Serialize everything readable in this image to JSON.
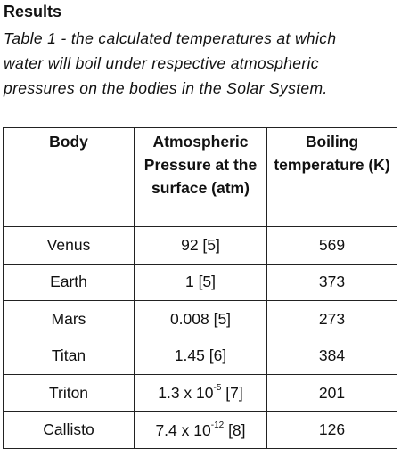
{
  "heading": "Results",
  "caption_lines": [
    "Table 1 - the calculated temperatures at which",
    "water will boil under respective atmospheric",
    "pressures on the bodies in the Solar System."
  ],
  "table": {
    "headers": [
      "Body",
      "Atmospheric Pressure at the surface (atm)",
      "Boiling temperature (K)"
    ],
    "rows": [
      [
        "Venus",
        "92 [5]",
        "569"
      ],
      [
        "Earth",
        "1 [5]",
        "373"
      ],
      [
        "Mars",
        "0.008 [5]",
        "273"
      ],
      [
        "Titan",
        "1.45 [6]",
        "384"
      ],
      [
        "Triton",
        {
          "base": "1.3 x 10",
          "sup": "-5",
          "ref": "[7]"
        },
        "201"
      ],
      [
        "Callisto",
        {
          "base": "7.4 x 10",
          "sup": "-12",
          "ref": "[8]"
        },
        "126"
      ]
    ]
  }
}
